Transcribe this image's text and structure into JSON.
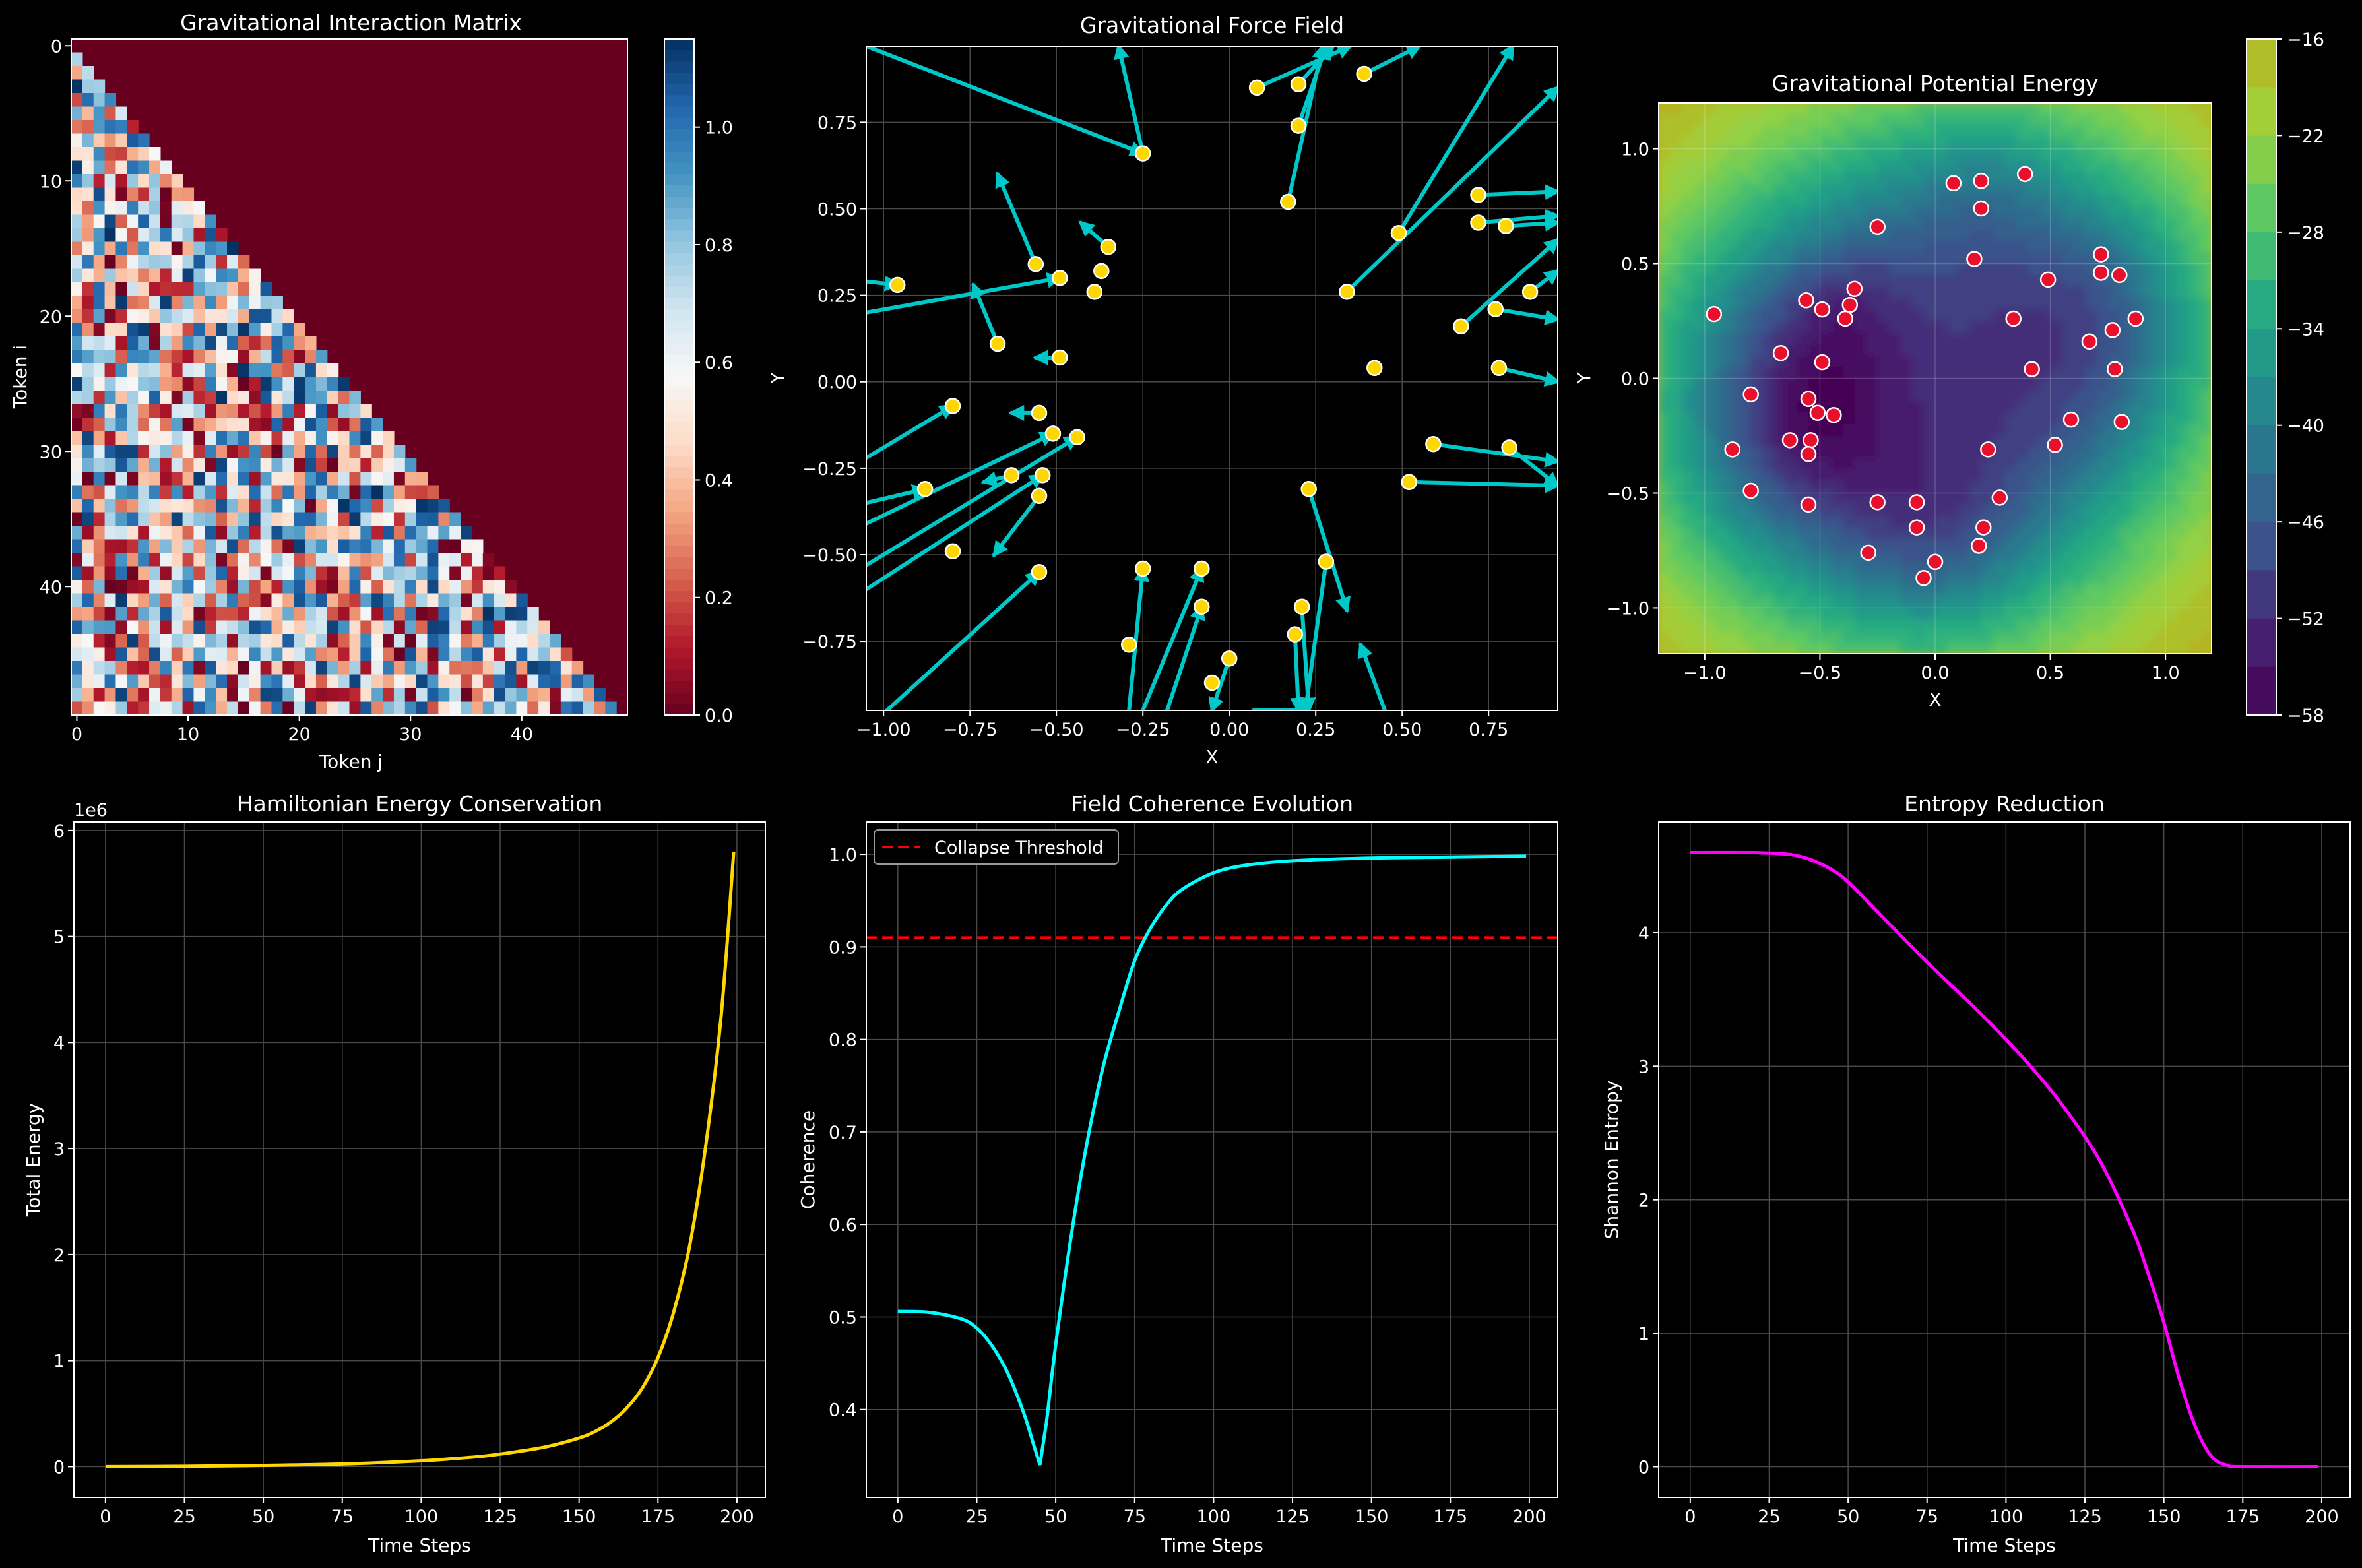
{
  "chart_data": [
    {
      "id": "matrix",
      "type": "heatmap",
      "title": "Gravitational Interaction Matrix",
      "xlabel": "Token j",
      "ylabel": "Token i",
      "size": 50,
      "structure": "strictly lower-triangular; cells on and above the diagonal are 0",
      "xticks": [
        0,
        10,
        20,
        30,
        40
      ],
      "yticks": [
        0,
        10,
        20,
        30,
        40
      ],
      "colormap": "RdBu",
      "colorbar": {
        "min": 0.0,
        "max": 1.15,
        "ticks": [
          "0.0",
          "0.2",
          "0.4",
          "0.6",
          "0.8",
          "1.0"
        ]
      }
    },
    {
      "id": "forcefield",
      "type": "scatter",
      "title": "Gravitational Force Field",
      "xlabel": "X",
      "ylabel": "Y",
      "xlim": [
        -1.05,
        0.95
      ],
      "ylim": [
        -0.95,
        0.97
      ],
      "xticks": [
        "−1.00",
        "−0.75",
        "−0.50",
        "−0.25",
        "0.00",
        "0.25",
        "0.50",
        "0.75"
      ],
      "yticks": [
        "−0.75",
        "−0.50",
        "−0.25",
        "0.00",
        "0.25",
        "0.50",
        "0.75"
      ],
      "grid": true,
      "points": [
        [
          0.08,
          0.85
        ],
        [
          0.2,
          0.86
        ],
        [
          0.39,
          0.89
        ],
        [
          0.2,
          0.74
        ],
        [
          -0.25,
          0.66
        ],
        [
          0.17,
          0.52
        ],
        [
          0.72,
          0.54
        ],
        [
          0.49,
          0.43
        ],
        [
          0.72,
          0.46
        ],
        [
          0.8,
          0.45
        ],
        [
          -0.35,
          0.39
        ],
        [
          -0.37,
          0.32
        ],
        [
          -0.56,
          0.34
        ],
        [
          -0.49,
          0.3
        ],
        [
          -0.39,
          0.26
        ],
        [
          -0.96,
          0.28
        ],
        [
          0.34,
          0.26
        ],
        [
          0.87,
          0.26
        ],
        [
          0.77,
          0.21
        ],
        [
          0.67,
          0.16
        ],
        [
          -0.67,
          0.11
        ],
        [
          -0.49,
          0.07
        ],
        [
          0.42,
          0.04
        ],
        [
          0.78,
          0.04
        ],
        [
          -0.8,
          -0.07
        ],
        [
          -0.55,
          -0.09
        ],
        [
          -0.51,
          -0.15
        ],
        [
          -0.44,
          -0.16
        ],
        [
          0.59,
          -0.18
        ],
        [
          0.81,
          -0.19
        ],
        [
          -0.54,
          -0.27
        ],
        [
          -0.63,
          -0.27
        ],
        [
          -0.55,
          -0.33
        ],
        [
          0.23,
          -0.31
        ],
        [
          0.52,
          -0.29
        ],
        [
          -0.88,
          -0.31
        ],
        [
          -0.8,
          -0.49
        ],
        [
          0.28,
          -0.52
        ],
        [
          -0.55,
          -0.55
        ],
        [
          -0.25,
          -0.54
        ],
        [
          -0.08,
          -0.54
        ],
        [
          -0.08,
          -0.65
        ],
        [
          0.21,
          -0.65
        ],
        [
          -0.29,
          -0.76
        ],
        [
          0.19,
          -0.73
        ],
        [
          0.0,
          -0.8
        ],
        [
          -0.05,
          -0.87
        ]
      ],
      "arrows": [
        [
          -1.05,
          0.97,
          -0.25,
          0.66
        ],
        [
          0.08,
          0.85,
          0.35,
          0.97
        ],
        [
          0.2,
          0.86,
          0.3,
          0.97
        ],
        [
          0.39,
          0.89,
          0.55,
          0.97
        ],
        [
          0.2,
          0.74,
          0.28,
          0.97
        ],
        [
          0.17,
          0.52,
          0.27,
          0.97
        ],
        [
          -0.25,
          0.66,
          -0.32,
          0.97
        ],
        [
          0.72,
          0.54,
          0.95,
          0.55
        ],
        [
          0.49,
          0.43,
          0.82,
          0.97
        ],
        [
          0.72,
          0.46,
          0.95,
          0.48
        ],
        [
          0.8,
          0.45,
          0.95,
          0.46
        ],
        [
          0.34,
          0.26,
          0.95,
          0.85
        ],
        [
          0.87,
          0.26,
          0.95,
          0.32
        ],
        [
          0.77,
          0.21,
          0.95,
          0.18
        ],
        [
          0.67,
          0.16,
          0.95,
          0.41
        ],
        [
          0.78,
          0.04,
          0.95,
          0.0
        ],
        [
          0.59,
          -0.18,
          0.95,
          -0.23
        ],
        [
          0.81,
          -0.19,
          0.95,
          -0.3
        ],
        [
          0.52,
          -0.29,
          0.95,
          -0.3
        ],
        [
          -1.05,
          0.29,
          -0.96,
          0.28
        ],
        [
          -1.05,
          0.2,
          -0.49,
          0.3
        ],
        [
          -0.56,
          0.34,
          -0.67,
          0.6
        ],
        [
          -0.35,
          0.39,
          -0.43,
          0.46
        ],
        [
          -0.67,
          0.11,
          -0.74,
          0.28
        ],
        [
          -0.49,
          0.07,
          -0.56,
          0.07
        ],
        [
          -1.05,
          -0.22,
          -0.8,
          -0.07
        ],
        [
          -0.55,
          -0.09,
          -0.63,
          -0.09
        ],
        [
          -1.05,
          -0.35,
          -0.88,
          -0.31
        ],
        [
          -1.05,
          -0.41,
          -0.51,
          -0.15
        ],
        [
          -1.05,
          -0.53,
          -0.44,
          -0.16
        ],
        [
          -1.05,
          -0.6,
          -0.54,
          -0.27
        ],
        [
          -0.63,
          -0.27,
          -0.71,
          -0.29
        ],
        [
          -0.55,
          -0.33,
          -0.68,
          -0.5
        ],
        [
          -0.99,
          -0.95,
          -0.55,
          -0.55
        ],
        [
          -0.29,
          -0.95,
          -0.25,
          -0.54
        ],
        [
          -0.25,
          -0.95,
          -0.08,
          -0.54
        ],
        [
          -0.18,
          -0.95,
          -0.08,
          -0.65
        ],
        [
          0.07,
          -0.95,
          0.23,
          -0.95
        ],
        [
          0.23,
          -0.31,
          0.34,
          -0.66
        ],
        [
          0.28,
          -0.52,
          0.22,
          -0.95
        ],
        [
          0.21,
          -0.65,
          0.23,
          -0.95
        ],
        [
          0.19,
          -0.73,
          0.2,
          -0.95
        ],
        [
          0.0,
          -0.8,
          -0.05,
          -0.95
        ],
        [
          0.45,
          -0.95,
          0.38,
          -0.76
        ]
      ]
    },
    {
      "id": "potential",
      "type": "heatmap",
      "title": "Gravitational Potential Energy",
      "xlabel": "X",
      "ylabel": "Y",
      "xlim": [
        -1.2,
        1.2
      ],
      "ylim": [
        -1.2,
        1.2
      ],
      "xticks": [
        "−1.0",
        "−0.5",
        "0.0",
        "0.5",
        "1.0"
      ],
      "yticks": [
        "−1.0",
        "−0.5",
        "0.0",
        "0.5",
        "1.0"
      ],
      "colormap": "viridis",
      "colorbar": {
        "min": -58,
        "max": -16,
        "ticks": [
          "−58",
          "−52",
          "−46",
          "−40",
          "−34",
          "−28",
          "−22",
          "−16"
        ]
      },
      "points": [
        [
          0.08,
          0.85
        ],
        [
          0.2,
          0.86
        ],
        [
          0.39,
          0.89
        ],
        [
          0.2,
          0.74
        ],
        [
          -0.25,
          0.66
        ],
        [
          0.17,
          0.52
        ],
        [
          0.72,
          0.54
        ],
        [
          0.49,
          0.43
        ],
        [
          0.72,
          0.46
        ],
        [
          0.8,
          0.45
        ],
        [
          -0.35,
          0.39
        ],
        [
          -0.37,
          0.32
        ],
        [
          -0.56,
          0.34
        ],
        [
          -0.49,
          0.3
        ],
        [
          -0.39,
          0.26
        ],
        [
          -0.96,
          0.28
        ],
        [
          0.34,
          0.26
        ],
        [
          0.87,
          0.26
        ],
        [
          0.77,
          0.21
        ],
        [
          0.67,
          0.16
        ],
        [
          -0.67,
          0.11
        ],
        [
          -0.49,
          0.07
        ],
        [
          0.42,
          0.04
        ],
        [
          0.78,
          0.04
        ],
        [
          -0.8,
          -0.07
        ],
        [
          -0.55,
          -0.09
        ],
        [
          -0.51,
          -0.15
        ],
        [
          -0.44,
          -0.16
        ],
        [
          0.59,
          -0.18
        ],
        [
          0.81,
          -0.19
        ],
        [
          -0.54,
          -0.27
        ],
        [
          -0.63,
          -0.27
        ],
        [
          -0.55,
          -0.33
        ],
        [
          0.23,
          -0.31
        ],
        [
          0.52,
          -0.29
        ],
        [
          -0.88,
          -0.31
        ],
        [
          -0.8,
          -0.49
        ],
        [
          0.28,
          -0.52
        ],
        [
          -0.55,
          -0.55
        ],
        [
          -0.25,
          -0.54
        ],
        [
          -0.08,
          -0.54
        ],
        [
          -0.08,
          -0.65
        ],
        [
          0.21,
          -0.65
        ],
        [
          -0.29,
          -0.76
        ],
        [
          0.19,
          -0.73
        ],
        [
          0.0,
          -0.8
        ],
        [
          -0.05,
          -0.87
        ]
      ]
    },
    {
      "id": "energy",
      "type": "line",
      "title": "Hamiltonian Energy Conservation",
      "xlabel": "Time Steps",
      "ylabel": "Total Energy",
      "offset_text": "1e6",
      "xlim": [
        -10,
        209
      ],
      "ylim": [
        -0.29,
        6.08
      ],
      "xticks": [
        "0",
        "25",
        "50",
        "75",
        "100",
        "125",
        "150",
        "175",
        "200"
      ],
      "yticks": [
        "0",
        "1",
        "2",
        "3",
        "4",
        "5",
        "6"
      ],
      "grid": true,
      "color": "#ffd700",
      "x": [
        0,
        25,
        50,
        75,
        100,
        110,
        120,
        130,
        140,
        150,
        155,
        160,
        165,
        170,
        175,
        180,
        185,
        190,
        195,
        199
      ],
      "y": [
        0.0,
        0.003,
        0.012,
        0.025,
        0.055,
        0.075,
        0.1,
        0.14,
        0.19,
        0.27,
        0.33,
        0.42,
        0.55,
        0.74,
        1.03,
        1.46,
        2.08,
        3.0,
        4.25,
        5.8
      ]
    },
    {
      "id": "coherence",
      "type": "line",
      "title": "Field Coherence Evolution",
      "xlabel": "Time Steps",
      "ylabel": "Coherence",
      "xlim": [
        -10,
        209
      ],
      "ylim": [
        0.305,
        1.035
      ],
      "xticks": [
        "0",
        "25",
        "50",
        "75",
        "100",
        "125",
        "150",
        "175",
        "200"
      ],
      "yticks": [
        "0.4",
        "0.5",
        "0.6",
        "0.7",
        "0.8",
        "0.9",
        "1.0"
      ],
      "grid": true,
      "color": "#00ffff",
      "threshold": {
        "value": 0.91,
        "label": "Collapse Threshold",
        "color": "#ff0000"
      },
      "legend_position": "upper-left",
      "x": [
        0,
        10,
        20,
        25,
        30,
        35,
        40,
        43,
        45,
        47,
        50,
        55,
        60,
        65,
        70,
        75,
        80,
        85,
        90,
        100,
        110,
        125,
        150,
        175,
        199
      ],
      "y": [
        0.506,
        0.505,
        0.498,
        0.488,
        0.468,
        0.438,
        0.395,
        0.362,
        0.34,
        0.385,
        0.47,
        0.59,
        0.69,
        0.77,
        0.83,
        0.885,
        0.92,
        0.945,
        0.962,
        0.98,
        0.988,
        0.993,
        0.996,
        0.997,
        0.998
      ]
    },
    {
      "id": "entropy",
      "type": "line",
      "title": "Entropy Reduction",
      "xlabel": "Time Steps",
      "ylabel": "Shannon Entropy",
      "xlim": [
        -10,
        209
      ],
      "ylim": [
        -0.23,
        4.83
      ],
      "xticks": [
        "0",
        "25",
        "50",
        "75",
        "100",
        "125",
        "150",
        "175",
        "200"
      ],
      "yticks": [
        "0",
        "1",
        "2",
        "3",
        "4"
      ],
      "grid": true,
      "color": "#ff00ff",
      "x": [
        0,
        20,
        30,
        35,
        40,
        45,
        50,
        60,
        75,
        90,
        100,
        110,
        120,
        130,
        140,
        145,
        150,
        155,
        160,
        165,
        170,
        175,
        199
      ],
      "y": [
        4.6,
        4.6,
        4.59,
        4.57,
        4.53,
        4.47,
        4.38,
        4.14,
        3.78,
        3.44,
        3.2,
        2.94,
        2.64,
        2.28,
        1.78,
        1.45,
        1.08,
        0.65,
        0.3,
        0.08,
        0.01,
        0.0,
        0.0
      ]
    }
  ]
}
